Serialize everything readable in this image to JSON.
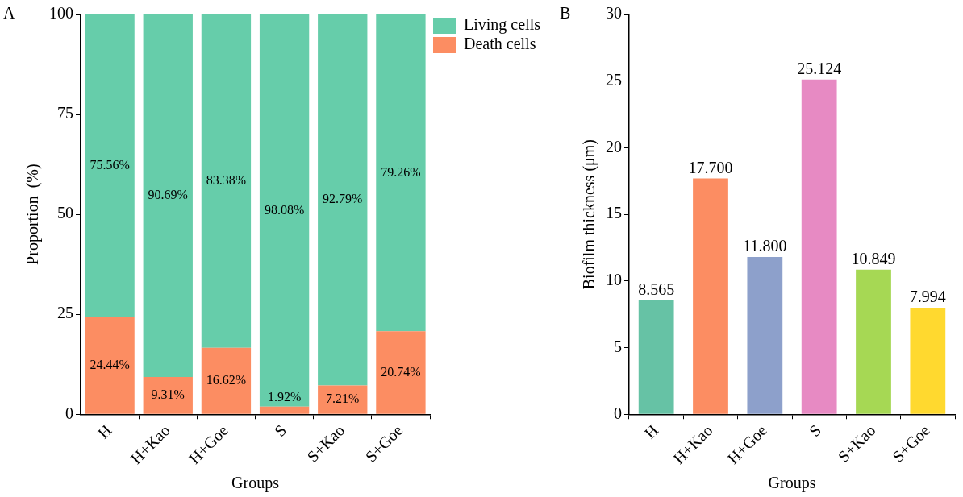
{
  "chart_data": [
    {
      "type": "bar",
      "stacked": true,
      "categories": [
        "H",
        "H+Kao",
        "H+Goe",
        "S",
        "S+Kao",
        "S+Goe"
      ],
      "xlabel": "Groups",
      "ylabel": "Proportion  (%)",
      "ylim": [
        0,
        100
      ],
      "yticks": [
        0,
        25,
        50,
        75,
        100
      ],
      "legend": "top right",
      "annotations": [
        "A"
      ],
      "series": [
        {
          "name": "Death cells",
          "color": "#fc8d62",
          "values": [
            24.44,
            9.31,
            16.62,
            1.92,
            7.21,
            20.74
          ],
          "value_labels": [
            "24.44%",
            "9.31%",
            "16.62%",
            "1.92%",
            "7.21%",
            "20.74%"
          ]
        },
        {
          "name": "Living cells",
          "color": "#66cdaa",
          "values": [
            75.56,
            90.69,
            83.38,
            98.08,
            92.79,
            79.26
          ],
          "value_labels": [
            "75.56%",
            "90.69%",
            "83.38%",
            "98.08%",
            "92.79%",
            "79.26%"
          ]
        }
      ]
    },
    {
      "type": "bar",
      "categories": [
        "H",
        "H+Kao",
        "H+Goe",
        "S",
        "S+Kao",
        "S+Goe"
      ],
      "xlabel": "Groups",
      "ylabel": "Biofilm thickness (μm)",
      "ylim": [
        0,
        30
      ],
      "yticks": [
        0,
        5,
        10,
        15,
        20,
        25,
        30
      ],
      "annotations": [
        "B"
      ],
      "values": [
        8.565,
        17.7,
        11.8,
        25.124,
        10.849,
        7.994
      ],
      "colors": [
        "#66c2a5",
        "#fc8d62",
        "#8da0cb",
        "#e78ac3",
        "#a6d854",
        "#ffd92f"
      ],
      "value_labels": [
        "8.565",
        "17.700",
        "11.800",
        "25.124",
        "10.849",
        "7.994"
      ]
    }
  ]
}
